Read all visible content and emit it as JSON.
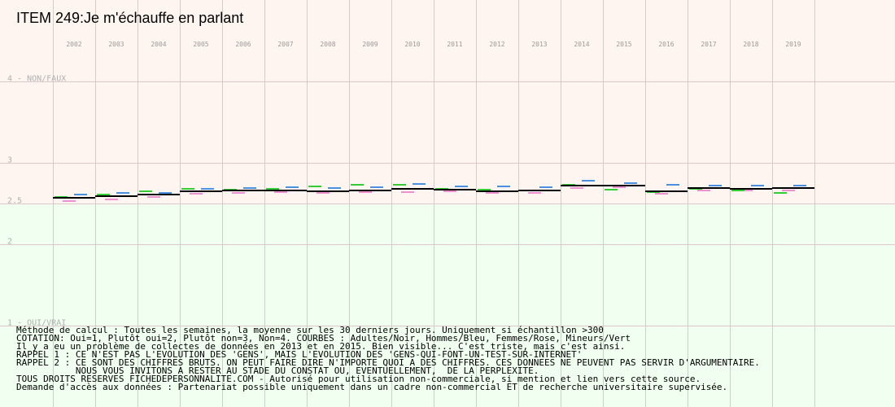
{
  "title": "ITEM 249:Je m'échauffe en parlant",
  "colors": {
    "upper_zone": "#fff5f0",
    "lower_zone": "#f0fff0",
    "grid": "#dcc8c8",
    "adults": "#000000",
    "men": "#4a90e2",
    "women": "#ee8fcf",
    "minors": "#33cc33"
  },
  "chart_data": {
    "type": "line",
    "title": "ITEM 249:Je m'échauffe en parlant",
    "x": [
      "2002",
      "2003",
      "2004",
      "2005",
      "2006",
      "2007",
      "2008",
      "2009",
      "2010",
      "2011",
      "2012",
      "2013",
      "2014",
      "2015",
      "2016",
      "2017",
      "2018",
      "2019"
    ],
    "ylim": [
      1,
      4
    ],
    "yticks": [
      {
        "value": 4,
        "label": "4 - NON/FAUX"
      },
      {
        "value": 3,
        "label": "3"
      },
      {
        "value": 2.5,
        "label": "2.5"
      },
      {
        "value": 2,
        "label": "2"
      },
      {
        "value": 1,
        "label": "1 - OUI/VRAI"
      }
    ],
    "zone_split": 2.5,
    "grid": true,
    "series": [
      {
        "key": "adults",
        "values": [
          2.57,
          2.59,
          2.61,
          2.65,
          2.66,
          2.66,
          2.65,
          2.66,
          2.68,
          2.67,
          2.65,
          2.66,
          2.72,
          2.72,
          2.65,
          2.69,
          2.68,
          2.69
        ]
      },
      {
        "key": "men",
        "values": [
          2.61,
          2.63,
          2.63,
          2.68,
          2.69,
          2.7,
          2.69,
          2.7,
          2.74,
          2.71,
          2.71,
          2.7,
          2.78,
          2.75,
          2.73,
          2.72,
          2.72,
          2.72
        ]
      },
      {
        "key": "women",
        "values": [
          2.53,
          2.55,
          2.58,
          2.62,
          2.63,
          2.64,
          2.63,
          2.64,
          2.64,
          2.65,
          2.63,
          2.63,
          2.69,
          2.7,
          2.62,
          2.66,
          2.66,
          2.66
        ]
      },
      {
        "key": "minors",
        "values": [
          2.58,
          2.61,
          2.65,
          2.68,
          2.67,
          2.68,
          2.71,
          2.73,
          2.73,
          2.68,
          2.67,
          2.66,
          2.73,
          2.67,
          2.64,
          2.68,
          2.66,
          2.63
        ]
      }
    ]
  },
  "notes": [
    "Méthode de calcul : Toutes les semaines, la moyenne sur les 30 derniers jours. Uniquement si échantillon >300",
    "COTATION: Oui=1, Plutôt oui=2, Plutôt non=3, Non=4. COURBES : Adultes/Noir, Hommes/Bleu, Femmes/Rose, Mineurs/Vert",
    "Il y a eu un problème de collectes de données en 2013 et en 2015. Bien visible... C'est triste, mais c'est ainsi.",
    "RAPPEL 1 : CE N'EST PAS L'EVOLUTION DES 'GENS', MAIS L'EVOLUTION DES 'GENS-QUI-FONT-UN-TEST-SUR-INTERNET'",
    "RAPPEL 2 : CE SONT DES CHIFFRES BRUTS. ON PEUT FAIRE DIRE N'IMPORTE QUOI A DES CHIFFRES. CES DONNEES NE PEUVENT PAS SERVIR D'ARGUMENTAIRE.",
    "           NOUS VOUS INVITONS A RESTER AU STADE DU CONSTAT OU, EVENTUELLEMENT,  DE LA PERPLEXITE.",
    "TOUS DROITS RESERVES FICHEDEPERSONNALITE.COM - Autorisé pour utilisation non-commerciale, si mention et lien vers cette source.",
    "Demande d'accès aux données : Partenariat possible uniquement dans un cadre non-commercial ET de recherche universitaire supervisée."
  ]
}
